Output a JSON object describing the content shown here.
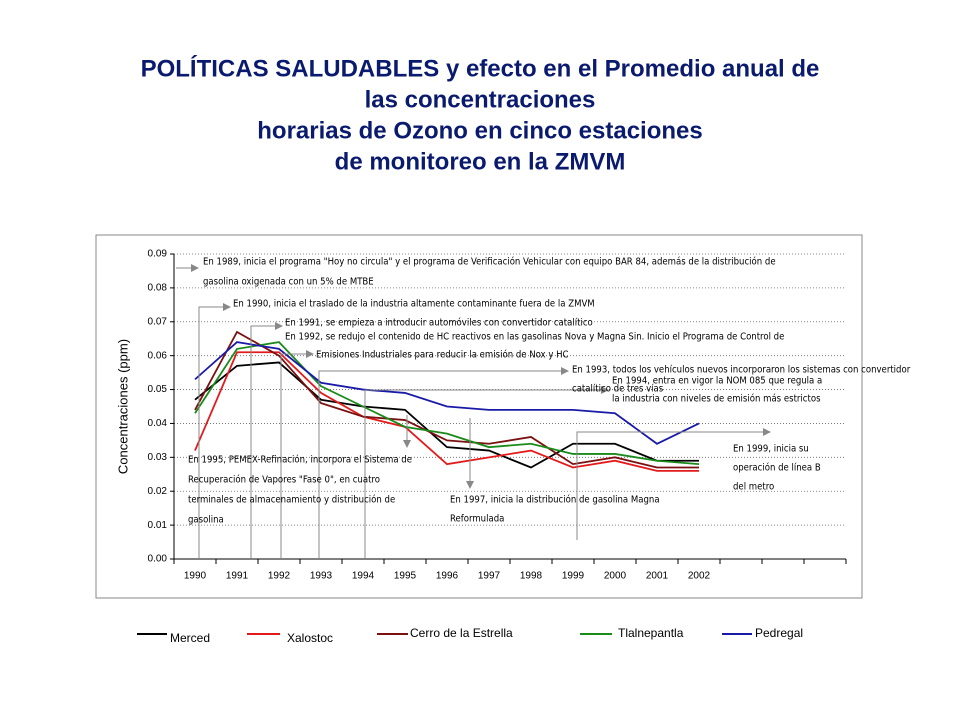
{
  "chart_data": {
    "type": "line",
    "title": [
      "POLÍTICAS SALUDABLES y efecto en el Promedio anual de",
      "las concentraciones",
      "horarias de Ozono en cinco estaciones",
      "de monitoreo en la ZMVM"
    ],
    "y_label": "Concentraciones (ppm)",
    "categories": [
      "1990",
      "1991",
      "1992",
      "1993",
      "1994",
      "1995",
      "1996",
      "1997",
      "1998",
      "1999",
      "2000",
      "2001",
      "2002",
      null,
      null,
      null
    ],
    "ylim": [
      0,
      0.09
    ],
    "yticks": [
      {
        "value": 0,
        "label": "0.00"
      },
      0.01,
      0.02,
      0.03,
      0.04,
      0.05,
      0.06,
      0.07,
      0.08,
      0.09
    ],
    "grid": true,
    "series": [
      {
        "name": "Merced",
        "color": "#000000",
        "values": [
          0.047,
          0.057,
          0.058,
          0.047,
          0.045,
          0.044,
          0.033,
          0.032,
          0.027,
          0.034,
          0.034,
          0.029,
          0.029,
          null,
          null,
          null
        ]
      },
      {
        "name": "Xalostoc",
        "color": "#e31a1c",
        "values": [
          0.032,
          0.061,
          0.061,
          0.049,
          0.042,
          0.039,
          0.028,
          0.03,
          0.032,
          0.027,
          0.029,
          0.026,
          0.026,
          null,
          null,
          null
        ]
      },
      {
        "name": "Cerro de la Estrella",
        "color": "#7a1010",
        "values": [
          0.044,
          0.067,
          0.06,
          0.046,
          0.042,
          0.041,
          0.035,
          0.034,
          0.036,
          0.028,
          0.03,
          0.027,
          0.027,
          null,
          null,
          null
        ]
      },
      {
        "name": "Tlalnepantla",
        "color": "#1a8a1a",
        "values": [
          0.043,
          0.062,
          0.064,
          0.051,
          0.045,
          0.039,
          0.037,
          0.033,
          0.034,
          0.031,
          0.031,
          0.029,
          0.028,
          null,
          null,
          null
        ]
      },
      {
        "name": "Pedregal",
        "color": "#1a1aa8",
        "values": [
          0.053,
          0.064,
          0.062,
          0.052,
          0.05,
          0.049,
          0.045,
          0.044,
          0.044,
          0.044,
          0.043,
          0.034,
          0.04,
          null,
          null,
          null
        ]
      }
    ],
    "annotations": [
      {
        "lines": [
          "En 1989, inicia el programa \"Hoy no circula\" y el programa de Verificación Vehicular con equipo BAR 84, además de la distribución de",
          "gasolina oxigenada con un 5% de MTBE"
        ]
      },
      {
        "lines": [
          "En 1990, inicia el traslado de la industria altamente contaminante fuera de la ZMVM"
        ]
      },
      {
        "lines": [
          "En 1991, se empieza a introducir automóviles con convertidor catalítico"
        ]
      },
      {
        "lines": [
          "En 1992, se redujo el contenido de HC reactivos en las gasolinas Nova y Magna Sin. Inicio el Programa de Control de",
          "Emisiones Industriales para reducir la emisión de Nox y HC"
        ]
      },
      {
        "lines": [
          "En 1993, todos los vehículos nuevos incorporaron los sistemas con convertidor",
          "catalítico de tres vías"
        ]
      },
      {
        "lines": [
          "En 1994, entra en vigor la NOM 085 que regula a",
          "la industria con niveles de emisión más estrictos"
        ]
      },
      {
        "lines": [
          "En 1995, PEMEX-Refinación, incorpora el Sistema de",
          "Recuperación de Vapores \"Fase 0\", en cuatro",
          "terminales de almacenamiento y distribución de",
          "gasolina"
        ]
      },
      {
        "lines": [
          "En 1997, inicia la distribución de gasolina Magna",
          "Reformulada"
        ]
      },
      {
        "lines": [
          "En 1999, inicia su",
          "operación de línea B",
          "del metro"
        ]
      }
    ]
  }
}
